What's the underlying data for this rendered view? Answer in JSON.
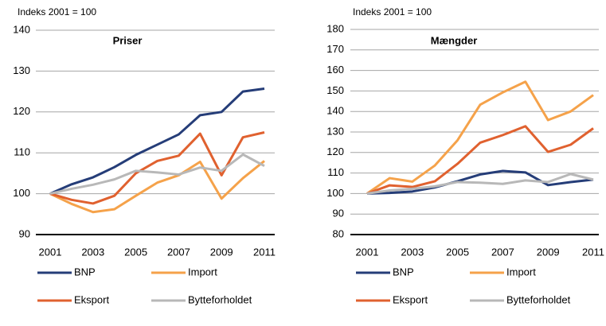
{
  "chart_data": [
    {
      "type": "line",
      "title": "Priser",
      "y_label": "Indeks 2001 = 100",
      "x": [
        2001,
        2002,
        2003,
        2004,
        2005,
        2006,
        2007,
        2008,
        2009,
        2010,
        2011
      ],
      "xlim": [
        2001,
        2011
      ],
      "xticks": [
        2001,
        2003,
        2005,
        2007,
        2009,
        2011
      ],
      "ylim": [
        90,
        140
      ],
      "yticks": [
        90,
        100,
        110,
        120,
        130,
        140
      ],
      "grid": true,
      "series": [
        {
          "name": "BNP",
          "color": "#253d78",
          "values": [
            100,
            102.3,
            104,
            106.5,
            109.5,
            112,
            114.5,
            119.2,
            120,
            125,
            125.7
          ]
        },
        {
          "name": "Import",
          "color": "#f5a24a",
          "values": [
            100,
            97.5,
            95.5,
            96.2,
            99.5,
            102.7,
            104.5,
            107.8,
            98.8,
            103.8,
            108
          ]
        },
        {
          "name": "Eksport",
          "color": "#e0612f",
          "values": [
            100,
            98.5,
            97.6,
            99.5,
            105,
            108,
            109.3,
            114.7,
            104.5,
            113.8,
            115
          ]
        },
        {
          "name": "Bytteforholdet",
          "color": "#b8b8b8",
          "values": [
            100,
            101.2,
            102.2,
            103.5,
            105.6,
            105.2,
            104.7,
            106.4,
            105.6,
            109.6,
            106.8
          ]
        }
      ]
    },
    {
      "type": "line",
      "title": "Mængder",
      "y_label": "Indeks 2001 = 100",
      "x": [
        2001,
        2002,
        2003,
        2004,
        2005,
        2006,
        2007,
        2008,
        2009,
        2010,
        2011
      ],
      "xlim": [
        2001,
        2011
      ],
      "xticks": [
        2001,
        2003,
        2005,
        2007,
        2009,
        2011
      ],
      "ylim": [
        80,
        180
      ],
      "yticks": [
        80,
        90,
        100,
        110,
        120,
        130,
        140,
        150,
        160,
        170,
        180
      ],
      "grid": true,
      "series": [
        {
          "name": "BNP",
          "color": "#253d78",
          "values": [
            100,
            100.3,
            101,
            103,
            106,
            109.3,
            111,
            110.3,
            104.1,
            105.6,
            106.8
          ]
        },
        {
          "name": "Import",
          "color": "#f5a24a",
          "values": [
            100,
            107.5,
            105.8,
            113.7,
            126,
            143.3,
            149.3,
            154.5,
            135.8,
            140,
            148
          ]
        },
        {
          "name": "Eksport",
          "color": "#e0612f",
          "values": [
            100,
            104,
            103.2,
            106,
            114.5,
            124.8,
            128.5,
            132.8,
            120.3,
            123.8,
            131.8
          ]
        },
        {
          "name": "Bytteforholdet",
          "color": "#b8b8b8",
          "values": [
            100,
            101.5,
            102.3,
            103.5,
            105.6,
            105.3,
            104.7,
            106.4,
            105.6,
            109.5,
            106.8
          ]
        }
      ]
    }
  ]
}
